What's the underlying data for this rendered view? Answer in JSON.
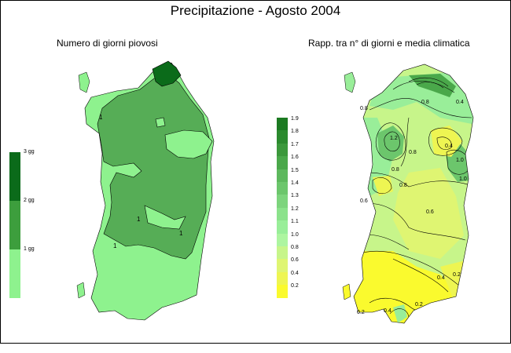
{
  "title": "Precipitazione - Agosto 2004",
  "left_map": {
    "subtitle": "Numero di giorni piovosi",
    "legend": [
      {
        "label": "3 gg",
        "color": "#0b6b1a"
      },
      {
        "label": "2 gg",
        "color": "#3d9e3d"
      },
      {
        "label": "1 gg",
        "color": "#8ef28e"
      }
    ],
    "contour_labels": [
      "1",
      "1",
      "1",
      "1"
    ]
  },
  "right_map": {
    "subtitle": "Rapp. tra n° di giorni e media climatica",
    "legend": [
      {
        "label": "1.9",
        "color": "#1c7a22"
      },
      {
        "label": "1.8",
        "color": "#2b8a2e"
      },
      {
        "label": "1.7",
        "color": "#3b983b"
      },
      {
        "label": "1.6",
        "color": "#4aa84a"
      },
      {
        "label": "1.5",
        "color": "#5db85d"
      },
      {
        "label": "1.4",
        "color": "#6cc66c"
      },
      {
        "label": "1.3",
        "color": "#7dd47d"
      },
      {
        "label": "1.2",
        "color": "#8be28b"
      },
      {
        "label": "1.1",
        "color": "#99ee99"
      },
      {
        "label": "1.0",
        "color": "#adf5a0"
      },
      {
        "label": "0.8",
        "color": "#c7f58a"
      },
      {
        "label": "0.6",
        "color": "#dff572"
      },
      {
        "label": "0.4",
        "color": "#eef552"
      },
      {
        "label": "0.2",
        "color": "#fafa2e"
      }
    ],
    "contour_labels": [
      "0.8",
      "0.8",
      "0.4",
      "1.2",
      "0.8",
      "1.0",
      "0.8",
      "0.4",
      "0.6",
      "0.8",
      "1.0",
      "0.6",
      "0.4",
      "0.2",
      "0.2",
      "0.4",
      "0.2"
    ]
  }
}
